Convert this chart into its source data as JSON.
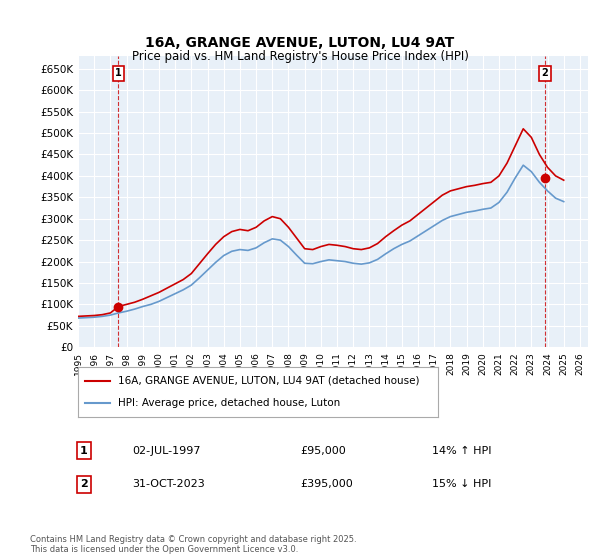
{
  "title": "16A, GRANGE AVENUE, LUTON, LU4 9AT",
  "subtitle": "Price paid vs. HM Land Registry's House Price Index (HPI)",
  "ylabel": "",
  "background_color": "#ffffff",
  "plot_bg_color": "#e8f0f8",
  "grid_color": "#ffffff",
  "red_line_color": "#cc0000",
  "blue_line_color": "#6699cc",
  "dashed_color": "#cc0000",
  "ylim": [
    0,
    680000
  ],
  "yticks": [
    0,
    50000,
    100000,
    150000,
    200000,
    250000,
    300000,
    350000,
    400000,
    450000,
    500000,
    550000,
    600000,
    650000
  ],
  "ytick_labels": [
    "£0",
    "£50K",
    "£100K",
    "£150K",
    "£200K",
    "£250K",
    "£300K",
    "£350K",
    "£400K",
    "£450K",
    "£500K",
    "£550K",
    "£600K",
    "£650K"
  ],
  "xlim_start": 1995.0,
  "xlim_end": 2026.5,
  "xtick_years": [
    1995,
    1996,
    1997,
    1998,
    1999,
    2000,
    2001,
    2002,
    2003,
    2004,
    2005,
    2006,
    2007,
    2008,
    2009,
    2010,
    2011,
    2012,
    2013,
    2014,
    2015,
    2016,
    2017,
    2018,
    2019,
    2020,
    2021,
    2022,
    2023,
    2024,
    2025,
    2026
  ],
  "legend_label_red": "16A, GRANGE AVENUE, LUTON, LU4 9AT (detached house)",
  "legend_label_blue": "HPI: Average price, detached house, Luton",
  "footer": "Contains HM Land Registry data © Crown copyright and database right 2025.\nThis data is licensed under the Open Government Licence v3.0.",
  "point1_x": 1997.5,
  "point1_y": 95000,
  "point1_label": "1",
  "point1_date": "02-JUL-1997",
  "point1_price": "£95,000",
  "point1_hpi": "14% ↑ HPI",
  "point2_x": 2023.83,
  "point2_y": 395000,
  "point2_label": "2",
  "point2_date": "31-OCT-2023",
  "point2_price": "£395,000",
  "point2_hpi": "15% ↓ HPI",
  "hpi_red_x": [
    1995.0,
    1995.5,
    1996.0,
    1996.5,
    1997.0,
    1997.5,
    1998.0,
    1998.5,
    1999.0,
    1999.5,
    2000.0,
    2000.5,
    2001.0,
    2001.5,
    2002.0,
    2002.5,
    2003.0,
    2003.5,
    2004.0,
    2004.5,
    2005.0,
    2005.5,
    2006.0,
    2006.5,
    2007.0,
    2007.5,
    2008.0,
    2008.5,
    2009.0,
    2009.5,
    2010.0,
    2010.5,
    2011.0,
    2011.5,
    2012.0,
    2012.5,
    2013.0,
    2013.5,
    2014.0,
    2014.5,
    2015.0,
    2015.5,
    2016.0,
    2016.5,
    2017.0,
    2017.5,
    2018.0,
    2018.5,
    2019.0,
    2019.5,
    2020.0,
    2020.5,
    2021.0,
    2021.5,
    2022.0,
    2022.5,
    2023.0,
    2023.5,
    2024.0,
    2024.5,
    2025.0
  ],
  "hpi_red_y": [
    72000,
    73000,
    74000,
    76000,
    80000,
    95000,
    100000,
    105000,
    112000,
    120000,
    128000,
    138000,
    148000,
    158000,
    172000,
    195000,
    218000,
    240000,
    258000,
    270000,
    275000,
    272000,
    280000,
    295000,
    305000,
    300000,
    280000,
    255000,
    230000,
    228000,
    235000,
    240000,
    238000,
    235000,
    230000,
    228000,
    232000,
    242000,
    258000,
    272000,
    285000,
    295000,
    310000,
    325000,
    340000,
    355000,
    365000,
    370000,
    375000,
    378000,
    382000,
    385000,
    400000,
    430000,
    470000,
    510000,
    490000,
    450000,
    420000,
    400000,
    390000
  ],
  "hpi_blue_x": [
    1995.0,
    1995.5,
    1996.0,
    1996.5,
    1997.0,
    1997.5,
    1998.0,
    1998.5,
    1999.0,
    1999.5,
    2000.0,
    2000.5,
    2001.0,
    2001.5,
    2002.0,
    2002.5,
    2003.0,
    2003.5,
    2004.0,
    2004.5,
    2005.0,
    2005.5,
    2006.0,
    2006.5,
    2007.0,
    2007.5,
    2008.0,
    2008.5,
    2009.0,
    2009.5,
    2010.0,
    2010.5,
    2011.0,
    2011.5,
    2012.0,
    2012.5,
    2013.0,
    2013.5,
    2014.0,
    2014.5,
    2015.0,
    2015.5,
    2016.0,
    2016.5,
    2017.0,
    2017.5,
    2018.0,
    2018.5,
    2019.0,
    2019.5,
    2020.0,
    2020.5,
    2021.0,
    2021.5,
    2022.0,
    2022.5,
    2023.0,
    2023.5,
    2024.0,
    2024.5,
    2025.0
  ],
  "hpi_blue_y": [
    68000,
    69000,
    70000,
    72000,
    75000,
    80000,
    84000,
    89000,
    95000,
    100000,
    107000,
    116000,
    125000,
    134000,
    145000,
    162000,
    180000,
    198000,
    214000,
    224000,
    228000,
    226000,
    232000,
    244000,
    253000,
    250000,
    235000,
    215000,
    196000,
    195000,
    200000,
    204000,
    202000,
    200000,
    196000,
    194000,
    197000,
    205000,
    218000,
    230000,
    240000,
    248000,
    260000,
    272000,
    284000,
    296000,
    305000,
    310000,
    315000,
    318000,
    322000,
    325000,
    338000,
    362000,
    395000,
    425000,
    410000,
    385000,
    365000,
    348000,
    340000
  ]
}
